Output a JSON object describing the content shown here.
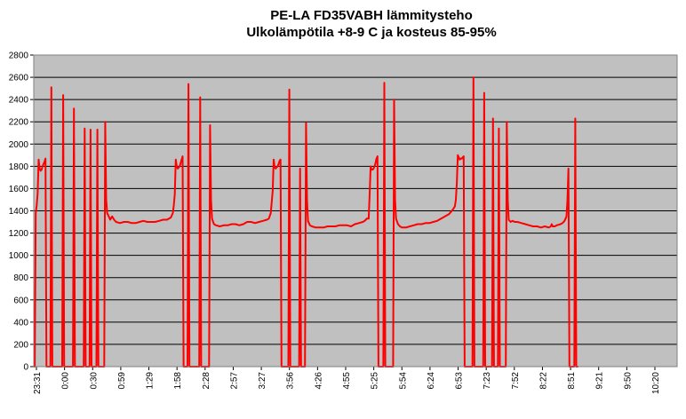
{
  "colors": {
    "plot_background": "#c0c0c0",
    "gridline": "#000000",
    "series": "#ff0000",
    "page_background": "#ffffff"
  },
  "chart_data": {
    "type": "line",
    "title": [
      "PE-LA FD35VABH lämmitysteho",
      "Ulkolämpötila +8-9 C ja kosteus 85-95%"
    ],
    "xlabel": "",
    "ylabel": "",
    "ylim": [
      0,
      2800
    ],
    "yticks": [
      0,
      200,
      400,
      600,
      800,
      1000,
      1200,
      1400,
      1600,
      1800,
      2000,
      2200,
      2400,
      2600,
      2800
    ],
    "grid": true,
    "legend": "none",
    "x_tick_labels": [
      "23:31",
      "0:00",
      "0:30",
      "0:59",
      "1:29",
      "1:58",
      "2:28",
      "2:57",
      "3:27",
      "3:56",
      "4:26",
      "4:55",
      "5:25",
      "5:54",
      "6:24",
      "6:53",
      "7:23",
      "7:52",
      "8:22",
      "8:51",
      "9:21",
      "9:50",
      "10:20"
    ],
    "x_range_minutes": [
      0,
      657
    ],
    "series": [
      {
        "name": "",
        "points": [
          [
            0,
            0
          ],
          [
            1,
            0
          ],
          [
            2,
            1380
          ],
          [
            3,
            1450
          ],
          [
            4,
            1560
          ],
          [
            5,
            1860
          ],
          [
            6,
            1780
          ],
          [
            7,
            1760
          ],
          [
            8,
            1770
          ],
          [
            9,
            1800
          ],
          [
            10,
            1820
          ],
          [
            11,
            1840
          ],
          [
            12,
            1870
          ],
          [
            13,
            0
          ],
          [
            16,
            0
          ],
          [
            17,
            0
          ],
          [
            18,
            2510
          ],
          [
            19,
            0
          ],
          [
            28,
            0
          ],
          [
            29,
            0
          ],
          [
            30,
            2440
          ],
          [
            31,
            0
          ],
          [
            39,
            0
          ],
          [
            40,
            0
          ],
          [
            41,
            2320
          ],
          [
            42,
            0
          ],
          [
            50,
            0
          ],
          [
            51,
            0
          ],
          [
            52,
            2140
          ],
          [
            53,
            0
          ],
          [
            56,
            0
          ],
          [
            57,
            0
          ],
          [
            58,
            2130
          ],
          [
            59,
            0
          ],
          [
            63,
            0
          ],
          [
            64,
            0
          ],
          [
            65,
            2130
          ],
          [
            66,
            0
          ],
          [
            71,
            0
          ],
          [
            72,
            0
          ],
          [
            73,
            2200
          ],
          [
            74,
            1500
          ],
          [
            75,
            1380
          ],
          [
            76,
            1360
          ],
          [
            77,
            1340
          ],
          [
            78,
            1320
          ],
          [
            80,
            1350
          ],
          [
            82,
            1320
          ],
          [
            84,
            1300
          ],
          [
            88,
            1290
          ],
          [
            92,
            1300
          ],
          [
            96,
            1300
          ],
          [
            100,
            1290
          ],
          [
            104,
            1290
          ],
          [
            108,
            1300
          ],
          [
            112,
            1310
          ],
          [
            116,
            1300
          ],
          [
            120,
            1300
          ],
          [
            124,
            1300
          ],
          [
            128,
            1310
          ],
          [
            132,
            1320
          ],
          [
            136,
            1320
          ],
          [
            140,
            1340
          ],
          [
            142,
            1380
          ],
          [
            143,
            1450
          ],
          [
            144,
            1550
          ],
          [
            145,
            1860
          ],
          [
            146,
            1800
          ],
          [
            147,
            1780
          ],
          [
            148,
            1790
          ],
          [
            149,
            1800
          ],
          [
            150,
            1830
          ],
          [
            151,
            1860
          ],
          [
            152,
            1890
          ],
          [
            153,
            0
          ],
          [
            156,
            0
          ],
          [
            157,
            0
          ],
          [
            158,
            2540
          ],
          [
            159,
            0
          ],
          [
            168,
            0
          ],
          [
            169,
            0
          ],
          [
            170,
            2420
          ],
          [
            171,
            0
          ],
          [
            178,
            0
          ],
          [
            179,
            0
          ],
          [
            180,
            2170
          ],
          [
            181,
            1500
          ],
          [
            182,
            1330
          ],
          [
            184,
            1280
          ],
          [
            186,
            1270
          ],
          [
            190,
            1260
          ],
          [
            194,
            1270
          ],
          [
            198,
            1270
          ],
          [
            202,
            1280
          ],
          [
            206,
            1280
          ],
          [
            210,
            1270
          ],
          [
            214,
            1280
          ],
          [
            218,
            1300
          ],
          [
            222,
            1300
          ],
          [
            226,
            1290
          ],
          [
            230,
            1300
          ],
          [
            234,
            1310
          ],
          [
            238,
            1320
          ],
          [
            240,
            1330
          ],
          [
            242,
            1380
          ],
          [
            243,
            1480
          ],
          [
            244,
            1580
          ],
          [
            245,
            1860
          ],
          [
            246,
            1790
          ],
          [
            247,
            1780
          ],
          [
            248,
            1790
          ],
          [
            249,
            1800
          ],
          [
            250,
            1820
          ],
          [
            251,
            1850
          ],
          [
            252,
            1860
          ],
          [
            253,
            0
          ],
          [
            259,
            0
          ],
          [
            260,
            0
          ],
          [
            261,
            2490
          ],
          [
            262,
            0
          ],
          [
            270,
            0
          ],
          [
            271,
            0
          ],
          [
            272,
            1780
          ],
          [
            273,
            0
          ],
          [
            276,
            0
          ],
          [
            277,
            0
          ],
          [
            278,
            2190
          ],
          [
            279,
            1500
          ],
          [
            280,
            1310
          ],
          [
            282,
            1270
          ],
          [
            284,
            1260
          ],
          [
            288,
            1250
          ],
          [
            292,
            1250
          ],
          [
            296,
            1250
          ],
          [
            300,
            1260
          ],
          [
            304,
            1260
          ],
          [
            308,
            1260
          ],
          [
            312,
            1270
          ],
          [
            316,
            1270
          ],
          [
            320,
            1270
          ],
          [
            324,
            1260
          ],
          [
            328,
            1280
          ],
          [
            332,
            1290
          ],
          [
            336,
            1300
          ],
          [
            338,
            1310
          ],
          [
            340,
            1330
          ],
          [
            342,
            1330
          ],
          [
            343,
            1550
          ],
          [
            344,
            1800
          ],
          [
            345,
            1770
          ],
          [
            346,
            1770
          ],
          [
            347,
            1780
          ],
          [
            348,
            1800
          ],
          [
            349,
            1830
          ],
          [
            350,
            1870
          ],
          [
            351,
            1890
          ],
          [
            352,
            0
          ],
          [
            356,
            0
          ],
          [
            357,
            0
          ],
          [
            358,
            2550
          ],
          [
            359,
            0
          ],
          [
            366,
            0
          ],
          [
            367,
            0
          ],
          [
            368,
            2400
          ],
          [
            369,
            1500
          ],
          [
            370,
            1330
          ],
          [
            372,
            1280
          ],
          [
            374,
            1260
          ],
          [
            376,
            1250
          ],
          [
            380,
            1250
          ],
          [
            384,
            1260
          ],
          [
            388,
            1270
          ],
          [
            392,
            1280
          ],
          [
            396,
            1280
          ],
          [
            400,
            1290
          ],
          [
            404,
            1290
          ],
          [
            408,
            1300
          ],
          [
            412,
            1310
          ],
          [
            416,
            1330
          ],
          [
            420,
            1350
          ],
          [
            424,
            1370
          ],
          [
            426,
            1390
          ],
          [
            428,
            1410
          ],
          [
            430,
            1440
          ],
          [
            431,
            1500
          ],
          [
            432,
            1650
          ],
          [
            433,
            1900
          ],
          [
            434,
            1880
          ],
          [
            435,
            1860
          ],
          [
            436,
            1870
          ],
          [
            437,
            1870
          ],
          [
            438,
            1880
          ],
          [
            439,
            1890
          ],
          [
            440,
            0
          ],
          [
            447,
            0
          ],
          [
            448,
            0
          ],
          [
            449,
            2600
          ],
          [
            450,
            0
          ],
          [
            458,
            0
          ],
          [
            459,
            0
          ],
          [
            460,
            2460
          ],
          [
            461,
            0
          ],
          [
            467,
            0
          ],
          [
            468,
            0
          ],
          [
            469,
            2230
          ],
          [
            470,
            0
          ],
          [
            473,
            0
          ],
          [
            474,
            0
          ],
          [
            475,
            2140
          ],
          [
            476,
            0
          ],
          [
            481,
            0
          ],
          [
            482,
            0
          ],
          [
            483,
            2200
          ],
          [
            484,
            1500
          ],
          [
            485,
            1320
          ],
          [
            487,
            1300
          ],
          [
            489,
            1310
          ],
          [
            491,
            1300
          ],
          [
            494,
            1300
          ],
          [
            498,
            1290
          ],
          [
            502,
            1280
          ],
          [
            506,
            1270
          ],
          [
            510,
            1260
          ],
          [
            514,
            1260
          ],
          [
            518,
            1250
          ],
          [
            522,
            1260
          ],
          [
            526,
            1250
          ],
          [
            528,
            1260
          ],
          [
            529,
            1280
          ],
          [
            530,
            1260
          ],
          [
            532,
            1260
          ],
          [
            534,
            1270
          ],
          [
            538,
            1280
          ],
          [
            540,
            1290
          ],
          [
            542,
            1310
          ],
          [
            544,
            1350
          ],
          [
            545,
            1500
          ],
          [
            546,
            1780
          ],
          [
            547,
            0
          ],
          [
            550,
            0
          ],
          [
            551,
            0
          ],
          [
            552,
            0
          ],
          [
            553,
            2230
          ],
          [
            554,
            0
          ],
          [
            556,
            0
          ]
        ]
      }
    ]
  }
}
